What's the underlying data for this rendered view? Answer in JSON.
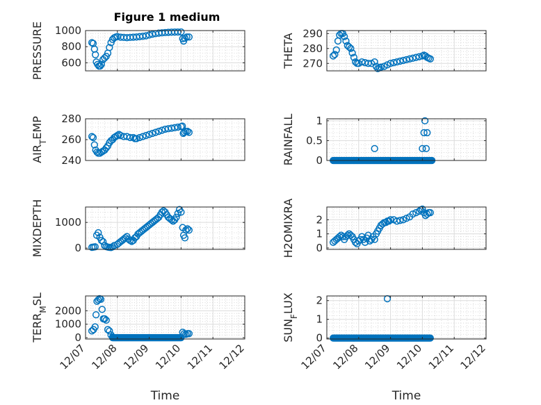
{
  "figure": {
    "title": "Figure 1 medium"
  },
  "colors": {
    "marker": "#0072BD",
    "axes": "#262626",
    "grid": "#dcdcdc"
  },
  "chart_data": [
    {
      "id": "pressure",
      "type": "scatter",
      "title": "Figure 1 medium",
      "ylabel": "PRESSURE",
      "ylabel_sub": null,
      "ylim": [
        500,
        1000
      ],
      "yticks": [
        "600",
        "800",
        "1000"
      ],
      "ytick_values": [
        600,
        800,
        1000
      ],
      "xlim": [
        0,
        5
      ],
      "xticks": [
        "12/07",
        "12/08",
        "12/09",
        "12/10",
        "12/11",
        "12/12"
      ],
      "xtick_values": [
        0,
        1,
        2,
        3,
        4,
        5
      ],
      "show_xticklabels": false,
      "xlabel": "",
      "grid": true,
      "points": [
        [
          0.2,
          850
        ],
        [
          0.24,
          840
        ],
        [
          0.28,
          770
        ],
        [
          0.31,
          700
        ],
        [
          0.34,
          610
        ],
        [
          0.38,
          580
        ],
        [
          0.42,
          560
        ],
        [
          0.46,
          560
        ],
        [
          0.5,
          580
        ],
        [
          0.55,
          640
        ],
        [
          0.6,
          660
        ],
        [
          0.65,
          680
        ],
        [
          0.7,
          720
        ],
        [
          0.75,
          790
        ],
        [
          0.8,
          850
        ],
        [
          0.85,
          890
        ],
        [
          0.9,
          910
        ],
        [
          0.95,
          920
        ],
        [
          1.0,
          925
        ],
        [
          1.1,
          918
        ],
        [
          1.2,
          915
        ],
        [
          1.3,
          912
        ],
        [
          1.4,
          915
        ],
        [
          1.5,
          918
        ],
        [
          1.6,
          920
        ],
        [
          1.7,
          925
        ],
        [
          1.8,
          930
        ],
        [
          1.9,
          935
        ],
        [
          2.0,
          945
        ],
        [
          2.1,
          955
        ],
        [
          2.2,
          962
        ],
        [
          2.3,
          968
        ],
        [
          2.4,
          972
        ],
        [
          2.5,
          975
        ],
        [
          2.6,
          978
        ],
        [
          2.7,
          980
        ],
        [
          2.8,
          981
        ],
        [
          2.9,
          982
        ],
        [
          3.0,
          983
        ],
        [
          3.05,
          900
        ],
        [
          3.08,
          870
        ],
        [
          3.12,
          905
        ],
        [
          3.18,
          920
        ],
        [
          3.25,
          920
        ]
      ]
    },
    {
      "id": "theta",
      "type": "scatter",
      "ylabel": "THETA",
      "ylabel_sub": null,
      "ylim": [
        265,
        292
      ],
      "yticks": [
        "270",
        "280",
        "290"
      ],
      "ytick_values": [
        270,
        280,
        290
      ],
      "xlim": [
        0,
        5
      ],
      "xticks": [
        "12/07",
        "12/08",
        "12/09",
        "12/10",
        "12/11",
        "12/12"
      ],
      "xtick_values": [
        0,
        1,
        2,
        3,
        4,
        5
      ],
      "show_xticklabels": false,
      "xlabel": "",
      "grid": true,
      "points": [
        [
          0.2,
          275
        ],
        [
          0.25,
          276
        ],
        [
          0.3,
          279
        ],
        [
          0.35,
          285
        ],
        [
          0.4,
          289
        ],
        [
          0.45,
          290
        ],
        [
          0.5,
          290
        ],
        [
          0.55,
          288
        ],
        [
          0.6,
          285
        ],
        [
          0.65,
          282
        ],
        [
          0.7,
          281
        ],
        [
          0.75,
          280
        ],
        [
          0.8,
          277
        ],
        [
          0.85,
          274
        ],
        [
          0.9,
          271
        ],
        [
          0.95,
          270
        ],
        [
          1.0,
          270
        ],
        [
          1.1,
          271
        ],
        [
          1.2,
          270.5
        ],
        [
          1.3,
          270
        ],
        [
          1.4,
          270
        ],
        [
          1.5,
          271
        ],
        [
          1.55,
          268
        ],
        [
          1.6,
          266.5
        ],
        [
          1.65,
          267
        ],
        [
          1.7,
          267.5
        ],
        [
          1.8,
          268
        ],
        [
          1.9,
          269
        ],
        [
          2.0,
          270
        ],
        [
          2.1,
          270.5
        ],
        [
          2.2,
          271
        ],
        [
          2.3,
          271.5
        ],
        [
          2.4,
          272
        ],
        [
          2.5,
          272.5
        ],
        [
          2.6,
          273
        ],
        [
          2.7,
          273.5
        ],
        [
          2.8,
          274
        ],
        [
          2.9,
          274.5
        ],
        [
          3.0,
          275
        ],
        [
          3.05,
          275.5
        ],
        [
          3.1,
          275
        ],
        [
          3.15,
          274
        ],
        [
          3.2,
          273.5
        ],
        [
          3.25,
          273
        ]
      ]
    },
    {
      "id": "air_temp",
      "type": "scatter",
      "ylabel": "AIR",
      "ylabel_sub": "T",
      "ylabel_suffix": "EMP",
      "ylim": [
        240,
        280
      ],
      "yticks": [
        "240",
        "260",
        "280"
      ],
      "ytick_values": [
        240,
        260,
        280
      ],
      "xlim": [
        0,
        5
      ],
      "xticks": [
        "12/07",
        "12/08",
        "12/09",
        "12/10",
        "12/11",
        "12/12"
      ],
      "xtick_values": [
        0,
        1,
        2,
        3,
        4,
        5
      ],
      "show_xticklabels": false,
      "xlabel": "",
      "grid": true,
      "points": [
        [
          0.2,
          263
        ],
        [
          0.24,
          262
        ],
        [
          0.28,
          255
        ],
        [
          0.32,
          250
        ],
        [
          0.36,
          248
        ],
        [
          0.4,
          247
        ],
        [
          0.45,
          247
        ],
        [
          0.5,
          248
        ],
        [
          0.55,
          249
        ],
        [
          0.6,
          250
        ],
        [
          0.65,
          252
        ],
        [
          0.7,
          254
        ],
        [
          0.75,
          257
        ],
        [
          0.8,
          259
        ],
        [
          0.85,
          260
        ],
        [
          0.9,
          262
        ],
        [
          0.95,
          263
        ],
        [
          1.0,
          264
        ],
        [
          1.05,
          265
        ],
        [
          1.1,
          264
        ],
        [
          1.2,
          263
        ],
        [
          1.3,
          263
        ],
        [
          1.4,
          262
        ],
        [
          1.5,
          262
        ],
        [
          1.55,
          261
        ],
        [
          1.6,
          261
        ],
        [
          1.7,
          262
        ],
        [
          1.8,
          263
        ],
        [
          1.9,
          264
        ],
        [
          2.0,
          265
        ],
        [
          2.1,
          266
        ],
        [
          2.2,
          267
        ],
        [
          2.3,
          268
        ],
        [
          2.4,
          269
        ],
        [
          2.5,
          270
        ],
        [
          2.6,
          270.5
        ],
        [
          2.7,
          271
        ],
        [
          2.8,
          271.5
        ],
        [
          2.9,
          272
        ],
        [
          3.0,
          272.5
        ],
        [
          3.04,
          273
        ],
        [
          3.07,
          266
        ],
        [
          3.1,
          267
        ],
        [
          3.15,
          268
        ],
        [
          3.2,
          268
        ],
        [
          3.25,
          267
        ]
      ]
    },
    {
      "id": "rainfall",
      "type": "scatter",
      "ylabel": "RAINFALL",
      "ylabel_sub": null,
      "ylim": [
        0,
        1.05
      ],
      "yticks": [
        "0",
        "0.5",
        "1"
      ],
      "ytick_values": [
        0,
        0.5,
        1
      ],
      "xlim": [
        0,
        5
      ],
      "xticks": [
        "12/07",
        "12/08",
        "12/09",
        "12/10",
        "12/11",
        "12/12"
      ],
      "xtick_values": [
        0,
        1,
        2,
        3,
        4,
        5
      ],
      "show_xticklabels": false,
      "xlabel": "",
      "grid": true,
      "points": [
        [
          1.5,
          0.3
        ],
        [
          3.0,
          0.3
        ],
        [
          3.05,
          0.7
        ],
        [
          3.08,
          1.0
        ],
        [
          3.12,
          0.3
        ],
        [
          3.15,
          0.7
        ]
      ],
      "baseline": {
        "y": 0,
        "x_from": 0.2,
        "x_to": 3.3,
        "step": 0.025
      }
    },
    {
      "id": "mixdepth",
      "type": "scatter",
      "ylabel": "MIXDEPTH",
      "ylabel_sub": null,
      "ylim": [
        -50,
        1600
      ],
      "yticks": [
        "0",
        "1000"
      ],
      "ytick_values": [
        0,
        1000
      ],
      "xlim": [
        0,
        5
      ],
      "xticks": [
        "12/07",
        "12/08",
        "12/09",
        "12/10",
        "12/11",
        "12/12"
      ],
      "xtick_values": [
        0,
        1,
        2,
        3,
        4,
        5
      ],
      "show_xticklabels": false,
      "xlabel": "",
      "grid": true,
      "points": [
        [
          0.2,
          30
        ],
        [
          0.25,
          40
        ],
        [
          0.3,
          50
        ],
        [
          0.35,
          500
        ],
        [
          0.4,
          600
        ],
        [
          0.45,
          420
        ],
        [
          0.5,
          300
        ],
        [
          0.55,
          250
        ],
        [
          0.6,
          100
        ],
        [
          0.65,
          60
        ],
        [
          0.7,
          40
        ],
        [
          0.75,
          30
        ],
        [
          0.8,
          20
        ],
        [
          0.85,
          50
        ],
        [
          0.9,
          100
        ],
        [
          1.0,
          150
        ],
        [
          1.05,
          200
        ],
        [
          1.1,
          250
        ],
        [
          1.15,
          300
        ],
        [
          1.2,
          350
        ],
        [
          1.25,
          400
        ],
        [
          1.3,
          450
        ],
        [
          1.35,
          350
        ],
        [
          1.4,
          300
        ],
        [
          1.45,
          260
        ],
        [
          1.5,
          300
        ],
        [
          1.55,
          400
        ],
        [
          1.6,
          450
        ],
        [
          1.65,
          550
        ],
        [
          1.7,
          600
        ],
        [
          1.75,
          650
        ],
        [
          1.8,
          700
        ],
        [
          1.85,
          750
        ],
        [
          1.9,
          800
        ],
        [
          1.95,
          850
        ],
        [
          2.0,
          900
        ],
        [
          2.05,
          950
        ],
        [
          2.1,
          1000
        ],
        [
          2.15,
          1050
        ],
        [
          2.2,
          1100
        ],
        [
          2.25,
          1150
        ],
        [
          2.3,
          1200
        ],
        [
          2.35,
          1300
        ],
        [
          2.4,
          1400
        ],
        [
          2.45,
          1450
        ],
        [
          2.5,
          1400
        ],
        [
          2.55,
          1300
        ],
        [
          2.6,
          1200
        ],
        [
          2.65,
          1150
        ],
        [
          2.7,
          1100
        ],
        [
          2.75,
          1050
        ],
        [
          2.8,
          1100
        ],
        [
          2.85,
          1200
        ],
        [
          2.9,
          1350
        ],
        [
          2.95,
          1500
        ],
        [
          3.0,
          1400
        ],
        [
          3.05,
          800
        ],
        [
          3.08,
          500
        ],
        [
          3.12,
          400
        ],
        [
          3.15,
          700
        ],
        [
          3.2,
          750
        ],
        [
          3.25,
          700
        ]
      ]
    },
    {
      "id": "h2omixra",
      "type": "scatter",
      "ylabel": "H2OMIXRA",
      "ylabel_sub": null,
      "ylim": [
        -0.1,
        2.9
      ],
      "yticks": [
        "0",
        "1",
        "2"
      ],
      "ytick_values": [
        0,
        1,
        2
      ],
      "xlim": [
        0,
        5
      ],
      "xticks": [
        "12/07",
        "12/08",
        "12/09",
        "12/10",
        "12/11",
        "12/12"
      ],
      "xtick_values": [
        0,
        1,
        2,
        3,
        4,
        5
      ],
      "show_xticklabels": false,
      "xlabel": "",
      "grid": true,
      "points": [
        [
          0.2,
          0.4
        ],
        [
          0.25,
          0.5
        ],
        [
          0.3,
          0.6
        ],
        [
          0.35,
          0.7
        ],
        [
          0.4,
          0.8
        ],
        [
          0.45,
          0.9
        ],
        [
          0.5,
          0.8
        ],
        [
          0.55,
          0.6
        ],
        [
          0.6,
          0.8
        ],
        [
          0.65,
          0.9
        ],
        [
          0.7,
          1.0
        ],
        [
          0.75,
          0.9
        ],
        [
          0.8,
          0.8
        ],
        [
          0.85,
          0.6
        ],
        [
          0.9,
          0.4
        ],
        [
          0.95,
          0.3
        ],
        [
          1.0,
          0.5
        ],
        [
          1.05,
          0.6
        ],
        [
          1.1,
          0.8
        ],
        [
          1.15,
          0.6
        ],
        [
          1.2,
          0.4
        ],
        [
          1.25,
          0.7
        ],
        [
          1.3,
          0.9
        ],
        [
          1.35,
          0.5
        ],
        [
          1.4,
          0.6
        ],
        [
          1.45,
          0.8
        ],
        [
          1.5,
          0.6
        ],
        [
          1.55,
          1.0
        ],
        [
          1.6,
          1.2
        ],
        [
          1.65,
          1.4
        ],
        [
          1.7,
          1.6
        ],
        [
          1.75,
          1.7
        ],
        [
          1.8,
          1.8
        ],
        [
          1.85,
          1.8
        ],
        [
          1.9,
          1.9
        ],
        [
          1.95,
          1.9
        ],
        [
          2.0,
          2.0
        ],
        [
          2.1,
          2.0
        ],
        [
          2.2,
          1.9
        ],
        [
          2.3,
          1.95
        ],
        [
          2.4,
          2.0
        ],
        [
          2.5,
          2.1
        ],
        [
          2.6,
          2.2
        ],
        [
          2.7,
          2.4
        ],
        [
          2.8,
          2.5
        ],
        [
          2.9,
          2.6
        ],
        [
          2.95,
          2.7
        ],
        [
          3.0,
          2.75
        ],
        [
          3.05,
          2.5
        ],
        [
          3.1,
          2.3
        ],
        [
          3.15,
          2.4
        ],
        [
          3.2,
          2.5
        ],
        [
          3.25,
          2.5
        ]
      ]
    },
    {
      "id": "terr_msl",
      "type": "scatter",
      "ylabel": "TERR",
      "ylabel_sub": "M",
      "ylabel_suffix": "SL",
      "ylim": [
        -100,
        3100
      ],
      "yticks": [
        "0",
        "1000",
        "2000"
      ],
      "ytick_values": [
        0,
        1000,
        2000
      ],
      "xlim": [
        0,
        5
      ],
      "xticks": [
        "12/07",
        "12/08",
        "12/09",
        "12/10",
        "12/11",
        "12/12"
      ],
      "xtick_values": [
        0,
        1,
        2,
        3,
        4,
        5
      ],
      "show_xticklabels": true,
      "xlabel": "Time",
      "grid": true,
      "points": [
        [
          0.2,
          500
        ],
        [
          0.25,
          600
        ],
        [
          0.3,
          800
        ],
        [
          0.33,
          1700
        ],
        [
          0.36,
          2700
        ],
        [
          0.4,
          2800
        ],
        [
          0.44,
          2900
        ],
        [
          0.48,
          2850
        ],
        [
          0.52,
          2100
        ],
        [
          0.56,
          1400
        ],
        [
          0.6,
          1400
        ],
        [
          0.65,
          1300
        ],
        [
          0.7,
          600
        ],
        [
          0.75,
          500
        ],
        [
          0.8,
          200
        ],
        [
          0.85,
          50
        ],
        [
          3.05,
          400
        ],
        [
          3.1,
          300
        ],
        [
          3.15,
          250
        ],
        [
          3.2,
          300
        ],
        [
          3.25,
          300
        ]
      ],
      "baseline": {
        "y": 0,
        "x_from": 0.85,
        "x_to": 3.02,
        "step": 0.025
      }
    },
    {
      "id": "sun_flux",
      "type": "scatter",
      "ylabel": "SUN",
      "ylabel_sub": "F",
      "ylabel_suffix": "LUX",
      "ylim": [
        -0.05,
        2.25
      ],
      "yticks": [
        "0",
        "1",
        "2"
      ],
      "ytick_values": [
        0,
        1,
        2
      ],
      "xlim": [
        0,
        5
      ],
      "xticks": [
        "12/07",
        "12/08",
        "12/09",
        "12/10",
        "12/11",
        "12/12"
      ],
      "xtick_values": [
        0,
        1,
        2,
        3,
        4,
        5
      ],
      "show_xticklabels": true,
      "xlabel": "Time",
      "grid": true,
      "points": [
        [
          1.9,
          2.1
        ]
      ],
      "baseline": {
        "y": 0,
        "x_from": 0.2,
        "x_to": 3.25,
        "step": 0.025
      }
    }
  ]
}
